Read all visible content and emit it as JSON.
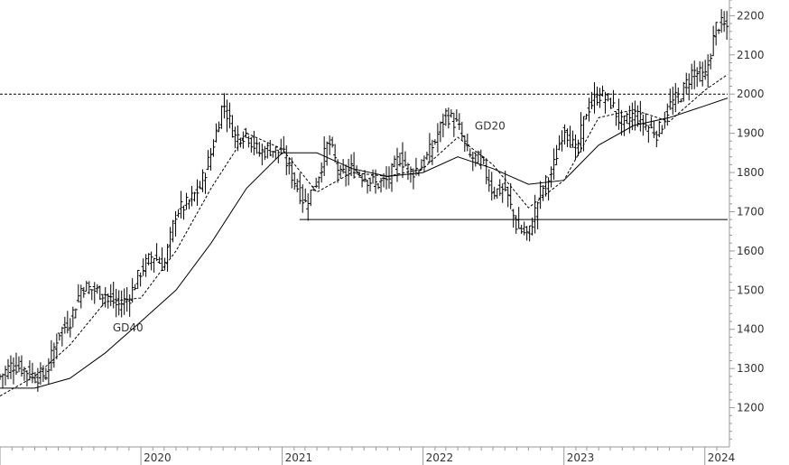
{
  "chart_data": {
    "type": "line",
    "subtype": "weekly-bar (OHLC-style) price chart with moving averages",
    "title": "",
    "xlabel": "",
    "ylabel": "",
    "x_range": [
      "2019-01-01",
      "2024-02-29"
    ],
    "ylim": [
      1100,
      2240
    ],
    "y_ticks": [
      1200,
      1300,
      1400,
      1500,
      1600,
      1700,
      1800,
      1900,
      2000,
      2100,
      2200
    ],
    "x_ticks": [
      {
        "label": "2020",
        "date": "2020-01-01"
      },
      {
        "label": "2021",
        "date": "2021-01-01"
      },
      {
        "label": "2022",
        "date": "2022-01-01"
      },
      {
        "label": "2023",
        "date": "2023-01-01"
      },
      {
        "label": "2024",
        "date": "2024-01-01"
      }
    ],
    "grid": false,
    "y_axis_position": "right",
    "reference_lines": [
      {
        "style": "dashed",
        "y": 2000,
        "from": "2019-01-01",
        "to": "2024-02-29"
      },
      {
        "style": "solid",
        "y": 1680,
        "from": "2021-02-15",
        "to": "2024-02-29"
      }
    ],
    "annotations": [
      {
        "text": "GD20",
        "date": "2022-05-15",
        "y": 1910
      },
      {
        "text": "GD40",
        "date": "2019-10-20",
        "y": 1395
      }
    ],
    "series": [
      {
        "role": "price",
        "style": "bars",
        "color": "#000000",
        "points": [
          [
            "2019-01-01",
            1280
          ],
          [
            "2019-02-01",
            1310
          ],
          [
            "2019-03-01",
            1300
          ],
          [
            "2019-04-01",
            1280
          ],
          [
            "2019-05-01",
            1285
          ],
          [
            "2019-06-01",
            1390
          ],
          [
            "2019-07-01",
            1420
          ],
          [
            "2019-08-01",
            1510
          ],
          [
            "2019-09-01",
            1500
          ],
          [
            "2019-10-01",
            1490
          ],
          [
            "2019-11-01",
            1460
          ],
          [
            "2019-12-01",
            1480
          ],
          [
            "2020-01-01",
            1550
          ],
          [
            "2020-02-01",
            1590
          ],
          [
            "2020-03-01",
            1560
          ],
          [
            "2020-04-01",
            1700
          ],
          [
            "2020-05-01",
            1720
          ],
          [
            "2020-06-01",
            1760
          ],
          [
            "2020-07-01",
            1850
          ],
          [
            "2020-08-01",
            1980
          ],
          [
            "2020-09-01",
            1890
          ],
          [
            "2020-10-01",
            1900
          ],
          [
            "2020-11-01",
            1850
          ],
          [
            "2020-12-01",
            1860
          ],
          [
            "2021-01-01",
            1850
          ],
          [
            "2021-02-01",
            1780
          ],
          [
            "2021-03-01",
            1720
          ],
          [
            "2021-04-01",
            1780
          ],
          [
            "2021-05-01",
            1880
          ],
          [
            "2021-06-01",
            1790
          ],
          [
            "2021-07-01",
            1810
          ],
          [
            "2021-08-01",
            1790
          ],
          [
            "2021-09-01",
            1770
          ],
          [
            "2021-10-01",
            1780
          ],
          [
            "2021-11-01",
            1840
          ],
          [
            "2021-12-01",
            1800
          ],
          [
            "2022-01-01",
            1820
          ],
          [
            "2022-02-01",
            1880
          ],
          [
            "2022-03-01",
            1950
          ],
          [
            "2022-04-01",
            1920
          ],
          [
            "2022-05-01",
            1840
          ],
          [
            "2022-06-01",
            1830
          ],
          [
            "2022-07-01",
            1750
          ],
          [
            "2022-08-01",
            1760
          ],
          [
            "2022-09-01",
            1660
          ],
          [
            "2022-10-01",
            1640
          ],
          [
            "2022-11-01",
            1750
          ],
          [
            "2022-12-01",
            1800
          ],
          [
            "2023-01-01",
            1920
          ],
          [
            "2023-02-01",
            1850
          ],
          [
            "2023-03-01",
            1960
          ],
          [
            "2023-04-01",
            2000
          ],
          [
            "2023-05-01",
            1980
          ],
          [
            "2023-06-01",
            1920
          ],
          [
            "2023-07-01",
            1950
          ],
          [
            "2023-08-01",
            1920
          ],
          [
            "2023-09-01",
            1900
          ],
          [
            "2023-10-01",
            1970
          ],
          [
            "2023-11-01",
            2000
          ],
          [
            "2023-12-01",
            2060
          ],
          [
            "2024-01-01",
            2040
          ],
          [
            "2024-02-01",
            2180
          ],
          [
            "2024-02-29",
            2170
          ]
        ]
      },
      {
        "role": "moving-average",
        "style": "dashed",
        "color": "#000000",
        "points": [
          [
            "2019-01-01",
            1230
          ],
          [
            "2019-04-01",
            1280
          ],
          [
            "2019-07-01",
            1360
          ],
          [
            "2019-10-01",
            1470
          ],
          [
            "2020-01-01",
            1480
          ],
          [
            "2020-04-01",
            1600
          ],
          [
            "2020-07-01",
            1760
          ],
          [
            "2020-10-01",
            1900
          ],
          [
            "2021-01-01",
            1860
          ],
          [
            "2021-04-01",
            1750
          ],
          [
            "2021-07-01",
            1800
          ],
          [
            "2021-10-01",
            1790
          ],
          [
            "2022-01-01",
            1810
          ],
          [
            "2022-04-01",
            1890
          ],
          [
            "2022-07-01",
            1820
          ],
          [
            "2022-10-01",
            1710
          ],
          [
            "2023-01-01",
            1780
          ],
          [
            "2023-04-01",
            1940
          ],
          [
            "2023-07-01",
            1960
          ],
          [
            "2023-10-01",
            1930
          ],
          [
            "2024-01-01",
            2010
          ],
          [
            "2024-02-29",
            2050
          ]
        ]
      },
      {
        "role": "moving-average",
        "style": "solid",
        "color": "#000000",
        "points": [
          [
            "2019-01-01",
            1250
          ],
          [
            "2019-04-01",
            1250
          ],
          [
            "2019-07-01",
            1275
          ],
          [
            "2019-10-01",
            1340
          ],
          [
            "2020-01-01",
            1420
          ],
          [
            "2020-04-01",
            1500
          ],
          [
            "2020-07-01",
            1620
          ],
          [
            "2020-10-01",
            1760
          ],
          [
            "2021-01-01",
            1850
          ],
          [
            "2021-04-01",
            1850
          ],
          [
            "2021-07-01",
            1810
          ],
          [
            "2021-10-01",
            1790
          ],
          [
            "2022-01-01",
            1800
          ],
          [
            "2022-04-01",
            1840
          ],
          [
            "2022-07-01",
            1810
          ],
          [
            "2022-10-01",
            1770
          ],
          [
            "2023-01-01",
            1780
          ],
          [
            "2023-04-01",
            1870
          ],
          [
            "2023-07-01",
            1920
          ],
          [
            "2023-10-01",
            1940
          ],
          [
            "2024-01-01",
            1970
          ],
          [
            "2024-02-29",
            1990
          ]
        ]
      }
    ]
  }
}
